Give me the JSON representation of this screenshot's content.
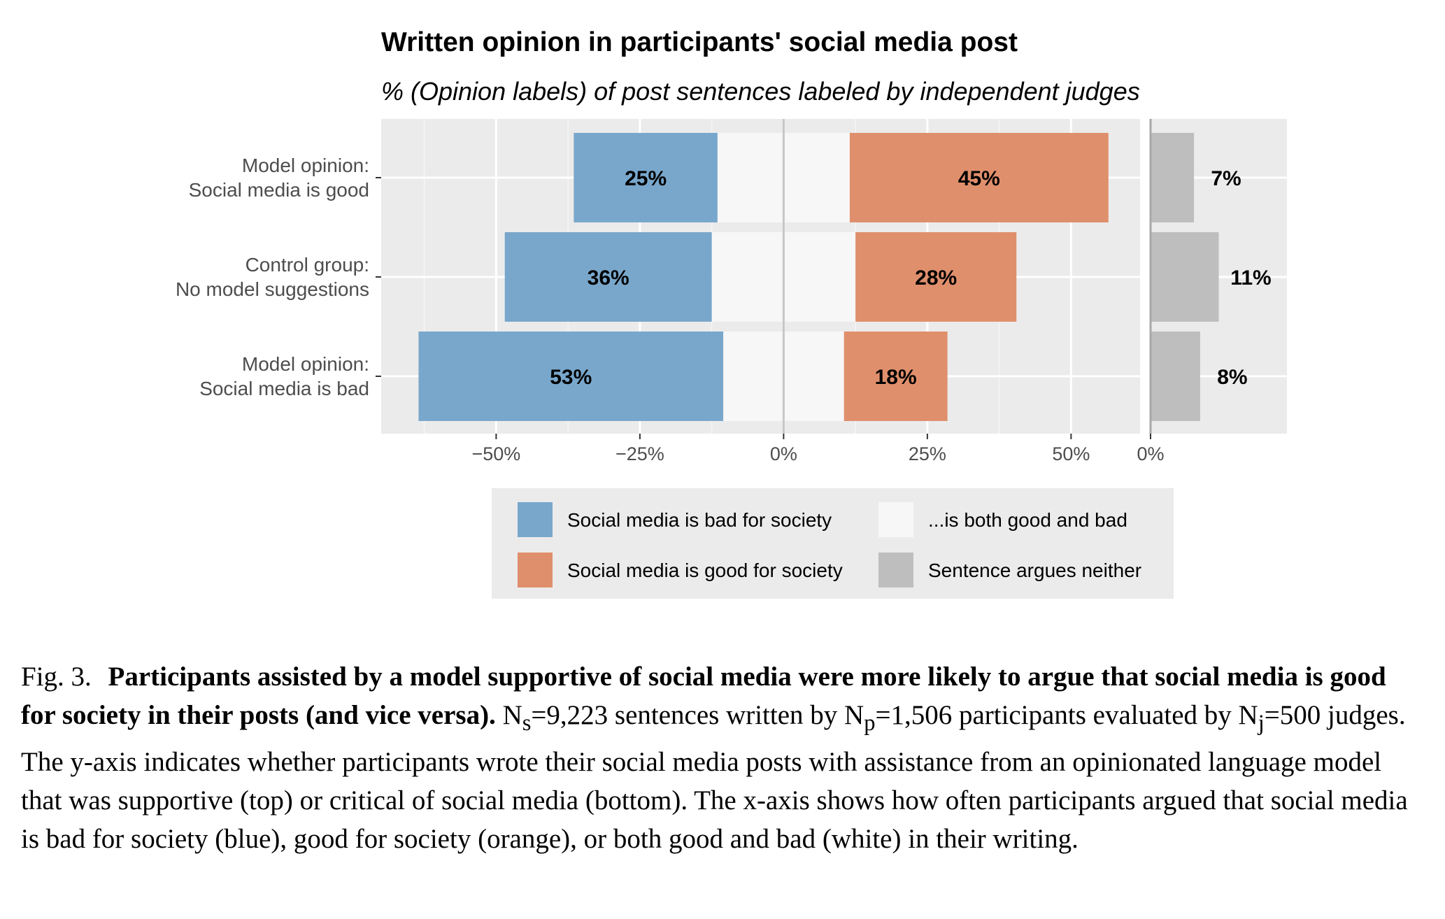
{
  "chart_data": {
    "type": "bar",
    "title": "Written opinion in participants' social media post",
    "subtitle": "% (Opinion labels) of post sentences labeled by independent judges",
    "categories": [
      {
        "line1": "Model opinion:",
        "line2": "Social media is good"
      },
      {
        "line1": "Control group:",
        "line2": "No model suggestions"
      },
      {
        "line1": "Model opinion:",
        "line2": "Social media is bad"
      }
    ],
    "series": [
      {
        "name": "Social media is bad for society",
        "values": [
          25,
          36,
          53
        ],
        "labels": [
          "25%",
          "36%",
          "53%"
        ]
      },
      {
        "name": "...is both good and bad",
        "values": [
          23,
          25,
          21
        ]
      },
      {
        "name": "Social media is good for society",
        "values": [
          45,
          28,
          18
        ],
        "labels": [
          "45%",
          "28%",
          "18%"
        ]
      },
      {
        "name": "Sentence argues neither",
        "values": [
          7,
          11,
          8
        ],
        "labels": [
          "7%",
          "11%",
          "8%"
        ]
      }
    ],
    "xlim_main": [
      -70,
      62
    ],
    "xticks_main": [
      {
        "value": -50,
        "label": "−50%"
      },
      {
        "value": -25,
        "label": "−25%"
      },
      {
        "value": 0,
        "label": "0%"
      },
      {
        "value": 25,
        "label": "25%"
      },
      {
        "value": 50,
        "label": "50%"
      }
    ],
    "xlim_side": [
      0,
      22
    ],
    "xticks_side": [
      {
        "value": 0,
        "label": "0%"
      }
    ],
    "legend_position": "bottom",
    "colors": {
      "bad": "#79a7cc",
      "both": "#f7f7f7",
      "good": "#e08f6c",
      "neither": "#bebebe",
      "panel": "#ebebeb",
      "grid_major": "#ffffff",
      "zero_line": "#c6c6c6"
    }
  },
  "caption": {
    "fig_label": "Fig. 3.",
    "bold_text": "Participants assisted by a model supportive of social media were more likely to argue that social media is good for society in their posts (and vice versa).",
    "ns_pre": "N",
    "ns_sub": "s",
    "ns_val": "=9,223 sentences written by N",
    "np_sub": "p",
    "np_val": "=1,506 participants evaluated by N",
    "nj_sub": "j",
    "nj_val": "=500 judges. The y-axis indicates whether participants wrote their social media posts with assistance from an opinionated language model that was supportive (top) or critical of social media (bottom). The x-axis shows how often participants argued that social media is bad for society (blue), good for society (orange), or both good and bad (white) in their writing."
  }
}
